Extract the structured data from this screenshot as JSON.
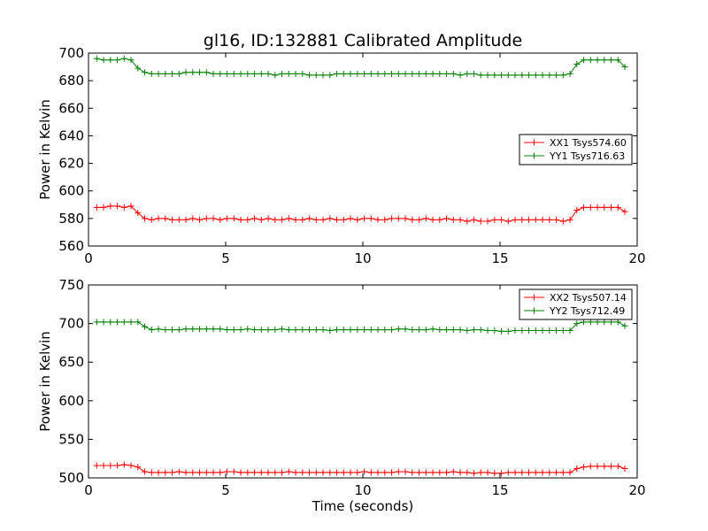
{
  "figure": {
    "title": "gl16, ID:132881 Calibrated Amplitude",
    "xlabel": "Time (seconds)"
  },
  "chart_data": [
    {
      "type": "line",
      "title": "gl16, ID:132881 Calibrated Amplitude",
      "xlabel": "",
      "ylabel": "Power in Kelvin",
      "xlim": [
        0,
        20
      ],
      "ylim": [
        560,
        700
      ],
      "xticks": [
        0,
        5,
        10,
        15,
        20
      ],
      "yticks": [
        560,
        580,
        600,
        620,
        640,
        660,
        680,
        700
      ],
      "grid": false,
      "legend_position": "center-right",
      "x": [
        0.3,
        0.55,
        0.8,
        1.05,
        1.3,
        1.55,
        1.8,
        2.05,
        2.3,
        2.55,
        2.8,
        3.05,
        3.3,
        3.55,
        3.8,
        4.05,
        4.3,
        4.55,
        4.8,
        5.05,
        5.3,
        5.55,
        5.8,
        6.05,
        6.3,
        6.55,
        6.8,
        7.05,
        7.3,
        7.55,
        7.8,
        8.05,
        8.3,
        8.55,
        8.8,
        9.05,
        9.3,
        9.55,
        9.8,
        10.05,
        10.3,
        10.55,
        10.8,
        11.05,
        11.3,
        11.55,
        11.8,
        12.05,
        12.3,
        12.55,
        12.8,
        13.05,
        13.3,
        13.55,
        13.8,
        14.05,
        14.3,
        14.55,
        14.8,
        15.05,
        15.3,
        15.55,
        15.8,
        16.05,
        16.3,
        16.55,
        16.8,
        17.05,
        17.3,
        17.55,
        17.8,
        18.05,
        18.3,
        18.55,
        18.8,
        19.05,
        19.3,
        19.55
      ],
      "series": [
        {
          "name": "XX1 Tsys574.60",
          "color": "#ff0000",
          "values": [
            588,
            588,
            589,
            589,
            588,
            589,
            584,
            580,
            579,
            580,
            580,
            579,
            579,
            579,
            580,
            579,
            580,
            580,
            579,
            580,
            580,
            579,
            579,
            580,
            579,
            580,
            579,
            579,
            580,
            579,
            579,
            580,
            579,
            579,
            580,
            579,
            579,
            580,
            579,
            580,
            580,
            579,
            579,
            580,
            580,
            580,
            579,
            579,
            580,
            579,
            579,
            580,
            579,
            579,
            578,
            579,
            578,
            578,
            579,
            579,
            578,
            579,
            579,
            579,
            579,
            579,
            579,
            579,
            578,
            579,
            586,
            588,
            588,
            588,
            588,
            588,
            588,
            585
          ]
        },
        {
          "name": "YY1 Tsys716.63",
          "color": "#008000",
          "values": [
            696,
            695,
            695,
            695,
            696,
            695,
            689,
            686,
            685,
            685,
            685,
            685,
            685,
            686,
            686,
            686,
            686,
            685,
            685,
            685,
            685,
            685,
            685,
            685,
            685,
            685,
            684,
            685,
            685,
            685,
            685,
            684,
            684,
            684,
            684,
            685,
            685,
            685,
            685,
            685,
            685,
            685,
            685,
            685,
            685,
            685,
            685,
            685,
            685,
            685,
            685,
            685,
            685,
            684,
            685,
            685,
            684,
            684,
            684,
            684,
            684,
            684,
            684,
            684,
            684,
            684,
            684,
            684,
            684,
            685,
            692,
            695,
            695,
            695,
            695,
            695,
            695,
            690
          ]
        }
      ]
    },
    {
      "type": "line",
      "title": "",
      "xlabel": "Time (seconds)",
      "ylabel": "Power in Kelvin",
      "xlim": [
        0,
        20
      ],
      "ylim": [
        500,
        750
      ],
      "xticks": [
        0,
        5,
        10,
        15,
        20
      ],
      "yticks": [
        500,
        550,
        600,
        650,
        700,
        750
      ],
      "grid": false,
      "legend_position": "top-right",
      "x": [
        0.3,
        0.55,
        0.8,
        1.05,
        1.3,
        1.55,
        1.8,
        2.05,
        2.3,
        2.55,
        2.8,
        3.05,
        3.3,
        3.55,
        3.8,
        4.05,
        4.3,
        4.55,
        4.8,
        5.05,
        5.3,
        5.55,
        5.8,
        6.05,
        6.3,
        6.55,
        6.8,
        7.05,
        7.3,
        7.55,
        7.8,
        8.05,
        8.3,
        8.55,
        8.8,
        9.05,
        9.3,
        9.55,
        9.8,
        10.05,
        10.3,
        10.55,
        10.8,
        11.05,
        11.3,
        11.55,
        11.8,
        12.05,
        12.3,
        12.55,
        12.8,
        13.05,
        13.3,
        13.55,
        13.8,
        14.05,
        14.3,
        14.55,
        14.8,
        15.05,
        15.3,
        15.55,
        15.8,
        16.05,
        16.3,
        16.55,
        16.8,
        17.05,
        17.3,
        17.55,
        17.8,
        18.05,
        18.3,
        18.55,
        18.8,
        19.05,
        19.3,
        19.55
      ],
      "series": [
        {
          "name": "XX2 Tsys507.14",
          "color": "#ff0000",
          "values": [
            516,
            516,
            516,
            516,
            517,
            516,
            514,
            508,
            507,
            507,
            507,
            507,
            508,
            507,
            507,
            507,
            507,
            507,
            507,
            508,
            508,
            507,
            507,
            507,
            507,
            507,
            507,
            507,
            508,
            507,
            507,
            507,
            507,
            507,
            507,
            507,
            507,
            507,
            507,
            508,
            507,
            507,
            507,
            507,
            508,
            508,
            507,
            507,
            507,
            507,
            507,
            507,
            508,
            507,
            507,
            506,
            507,
            507,
            506,
            506,
            507,
            507,
            507,
            507,
            507,
            507,
            507,
            507,
            507,
            507,
            512,
            514,
            515,
            515,
            515,
            515,
            515,
            512
          ]
        },
        {
          "name": "YY2 Tsys712.49",
          "color": "#008000",
          "values": [
            702,
            702,
            702,
            702,
            702,
            702,
            702,
            696,
            692,
            693,
            692,
            692,
            692,
            693,
            693,
            693,
            693,
            693,
            693,
            692,
            692,
            692,
            693,
            692,
            692,
            692,
            692,
            693,
            692,
            692,
            692,
            692,
            692,
            692,
            691,
            692,
            692,
            692,
            692,
            692,
            692,
            692,
            692,
            692,
            693,
            693,
            692,
            692,
            692,
            693,
            692,
            692,
            692,
            692,
            691,
            692,
            692,
            691,
            691,
            690,
            690,
            691,
            691,
            691,
            691,
            691,
            691,
            691,
            691,
            691,
            700,
            702,
            702,
            702,
            702,
            702,
            702,
            697
          ]
        }
      ]
    }
  ]
}
